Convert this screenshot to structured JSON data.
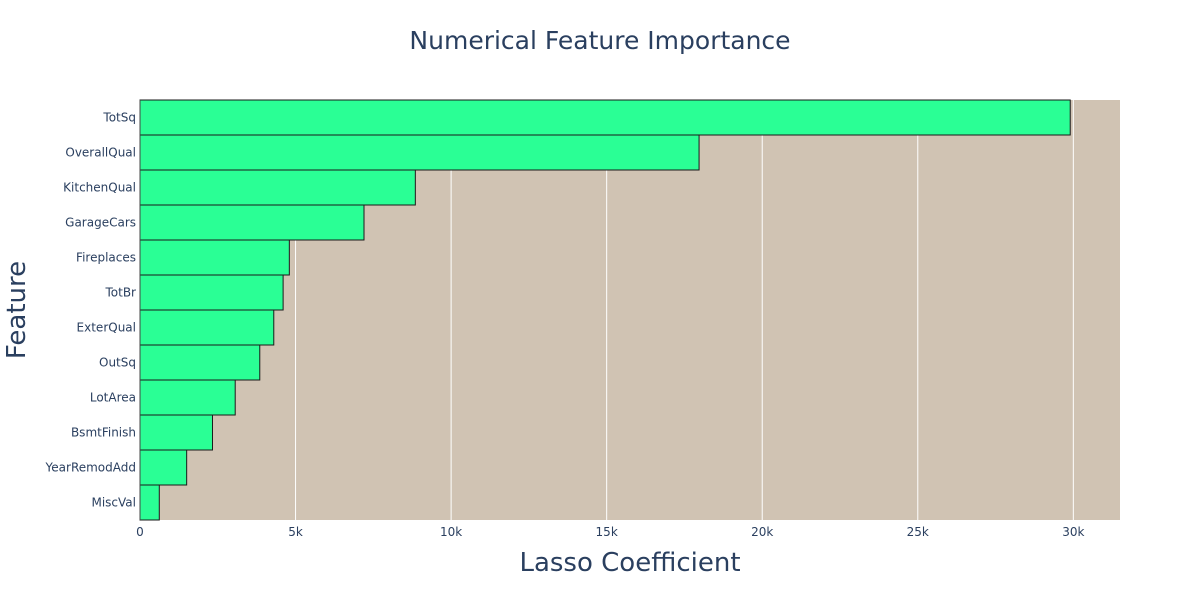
{
  "chart_data": {
    "type": "bar",
    "orientation": "horizontal",
    "title": "Numerical Feature Importance",
    "xlabel": "Lasso Coefficient",
    "ylabel": "Feature",
    "categories": [
      "MiscVal",
      "YearRemodAdd",
      "BsmtFinish",
      "LotArea",
      "OutSq",
      "ExterQual",
      "TotBr",
      "Fireplaces",
      "GarageCars",
      "KitchenQual",
      "OverallQual",
      "TotSq"
    ],
    "values": [
      620,
      1500,
      2330,
      3060,
      3850,
      4300,
      4600,
      4800,
      7200,
      8850,
      17970,
      29900
    ],
    "xlim": [
      0,
      31500
    ],
    "xticks": [
      0,
      5000,
      10000,
      15000,
      20000,
      25000,
      30000
    ],
    "xtick_labels": [
      "0",
      "5k",
      "10k",
      "15k",
      "20k",
      "25k",
      "30k"
    ],
    "grid": true,
    "colors": {
      "bar_fill": "#2aff95",
      "bar_edge": "#1a1a1a",
      "plot_background": "#d0c3b3",
      "grid": "#ffffff",
      "text": "#2a3f5f"
    }
  }
}
